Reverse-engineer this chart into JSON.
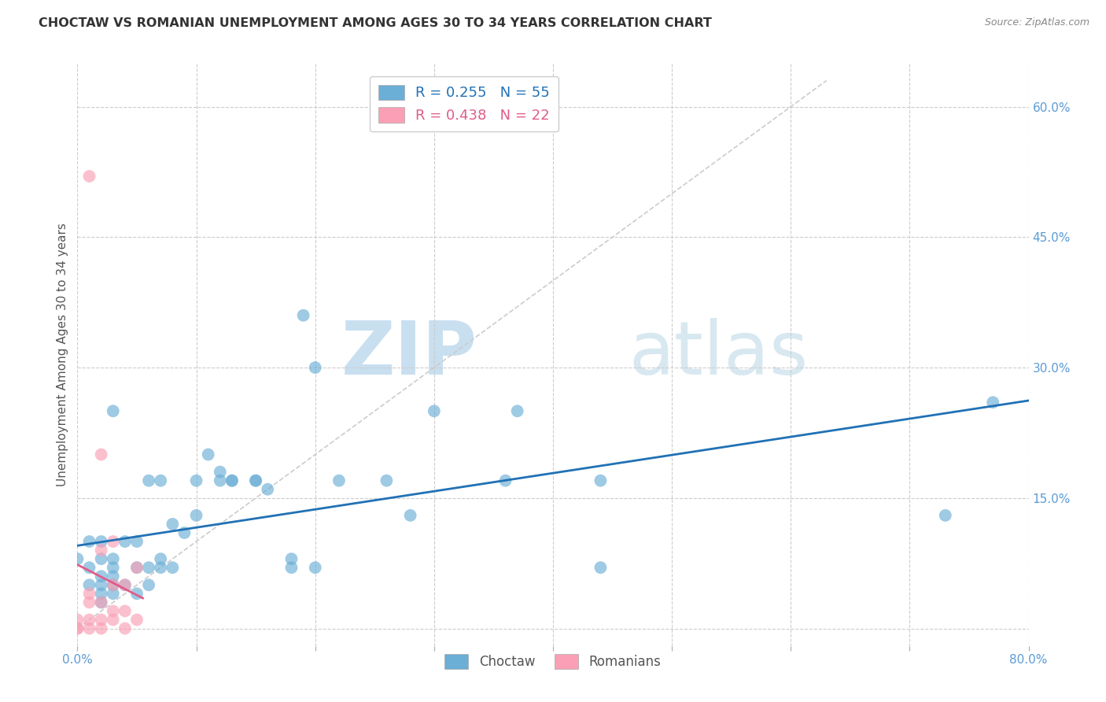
{
  "title": "CHOCTAW VS ROMANIAN UNEMPLOYMENT AMONG AGES 30 TO 34 YEARS CORRELATION CHART",
  "source": "Source: ZipAtlas.com",
  "ylabel": "Unemployment Among Ages 30 to 34 years",
  "xlim": [
    0.0,
    0.8
  ],
  "ylim": [
    -0.02,
    0.65
  ],
  "xticks": [
    0.0,
    0.1,
    0.2,
    0.3,
    0.4,
    0.5,
    0.6,
    0.7,
    0.8
  ],
  "yticks": [
    0.0,
    0.15,
    0.3,
    0.45,
    0.6
  ],
  "choctaw_R": 0.255,
  "choctaw_N": 55,
  "romanian_R": 0.438,
  "romanian_N": 22,
  "choctaw_color": "#6baed6",
  "romanian_color": "#fa9fb5",
  "choctaw_line_color": "#2171b5",
  "romanian_line_color": "#e05c8a",
  "watermark_zip": "ZIP",
  "watermark_atlas": "atlas",
  "choctaw_x": [
    0.0,
    0.01,
    0.01,
    0.01,
    0.02,
    0.02,
    0.02,
    0.02,
    0.02,
    0.02,
    0.03,
    0.03,
    0.03,
    0.03,
    0.03,
    0.03,
    0.04,
    0.04,
    0.05,
    0.05,
    0.05,
    0.06,
    0.06,
    0.06,
    0.07,
    0.07,
    0.07,
    0.08,
    0.08,
    0.09,
    0.1,
    0.1,
    0.11,
    0.12,
    0.12,
    0.13,
    0.13,
    0.15,
    0.15,
    0.16,
    0.18,
    0.18,
    0.19,
    0.2,
    0.2,
    0.22,
    0.26,
    0.28,
    0.3,
    0.36,
    0.37,
    0.44,
    0.44,
    0.73,
    0.77
  ],
  "choctaw_y": [
    0.08,
    0.05,
    0.07,
    0.1,
    0.03,
    0.04,
    0.05,
    0.06,
    0.08,
    0.1,
    0.04,
    0.05,
    0.06,
    0.07,
    0.08,
    0.25,
    0.05,
    0.1,
    0.04,
    0.07,
    0.1,
    0.05,
    0.07,
    0.17,
    0.07,
    0.08,
    0.17,
    0.07,
    0.12,
    0.11,
    0.13,
    0.17,
    0.2,
    0.17,
    0.18,
    0.17,
    0.17,
    0.17,
    0.17,
    0.16,
    0.07,
    0.08,
    0.36,
    0.07,
    0.3,
    0.17,
    0.17,
    0.13,
    0.25,
    0.17,
    0.25,
    0.07,
    0.17,
    0.13,
    0.26
  ],
  "romanian_x": [
    0.0,
    0.0,
    0.0,
    0.01,
    0.01,
    0.01,
    0.01,
    0.01,
    0.02,
    0.02,
    0.02,
    0.02,
    0.02,
    0.03,
    0.03,
    0.03,
    0.03,
    0.04,
    0.04,
    0.04,
    0.05,
    0.05
  ],
  "romanian_y": [
    0.0,
    0.0,
    0.01,
    0.0,
    0.01,
    0.03,
    0.04,
    0.52,
    0.0,
    0.01,
    0.03,
    0.09,
    0.2,
    0.01,
    0.02,
    0.05,
    0.1,
    0.0,
    0.02,
    0.05,
    0.01,
    0.07
  ]
}
